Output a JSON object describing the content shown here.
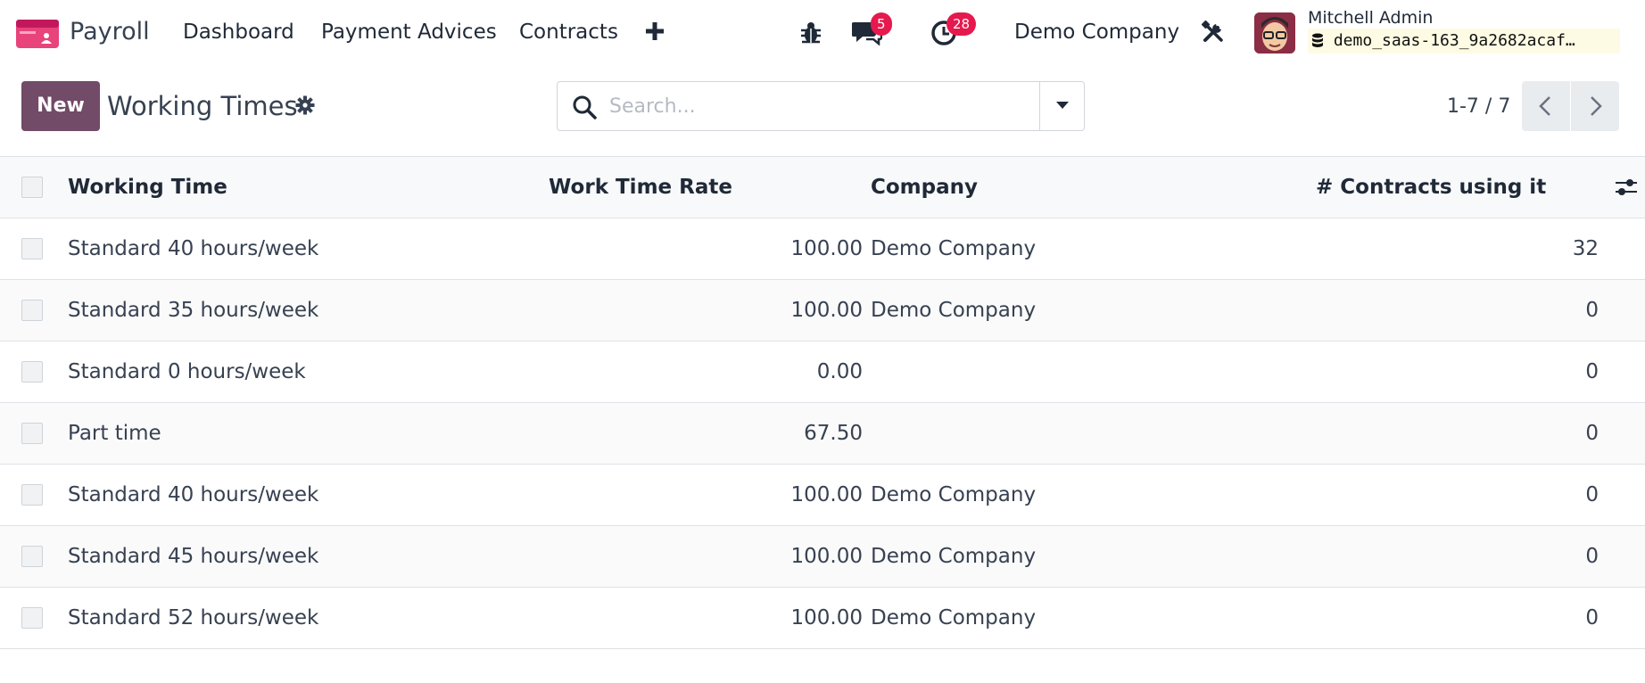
{
  "navbar": {
    "app_name": "Payroll",
    "menu": [
      "Dashboard",
      "Payment Advices",
      "Contracts"
    ],
    "messages_count": "5",
    "activities_count": "28",
    "company": "Demo Company",
    "user_name": "Mitchell Admin",
    "database": "demo_saas-163_9a2682acaf…",
    "icons": [
      "app-icon",
      "plus-icon",
      "bug-icon",
      "chat-icon",
      "clock-icon",
      "tools-icon",
      "database-icon"
    ]
  },
  "control_panel": {
    "new_label": "New",
    "title": "Working Times",
    "search_placeholder": "Search...",
    "pager": "1-7 / 7"
  },
  "table": {
    "headers": {
      "name": "Working Time",
      "rate": "Work Time Rate",
      "company": "Company",
      "count": "# Contracts using it"
    },
    "rows": [
      {
        "name": "Standard 40 hours/week",
        "rate": "100.00",
        "company": "Demo Company",
        "count": "32"
      },
      {
        "name": "Standard 35 hours/week",
        "rate": "100.00",
        "company": "Demo Company",
        "count": "0"
      },
      {
        "name": "Standard 0 hours/week",
        "rate": "0.00",
        "company": "",
        "count": "0"
      },
      {
        "name": "Part time",
        "rate": "67.50",
        "company": "",
        "count": "0"
      },
      {
        "name": "Standard 40 hours/week",
        "rate": "100.00",
        "company": "Demo Company",
        "count": "0"
      },
      {
        "name": "Standard 45 hours/week",
        "rate": "100.00",
        "company": "Demo Company",
        "count": "0"
      },
      {
        "name": "Standard 52 hours/week",
        "rate": "100.00",
        "company": "Demo Company",
        "count": "0"
      }
    ]
  },
  "colors": {
    "primary": "#714B67",
    "badge": "#e5194e",
    "db_tag_bg": "#fdfbe3"
  }
}
